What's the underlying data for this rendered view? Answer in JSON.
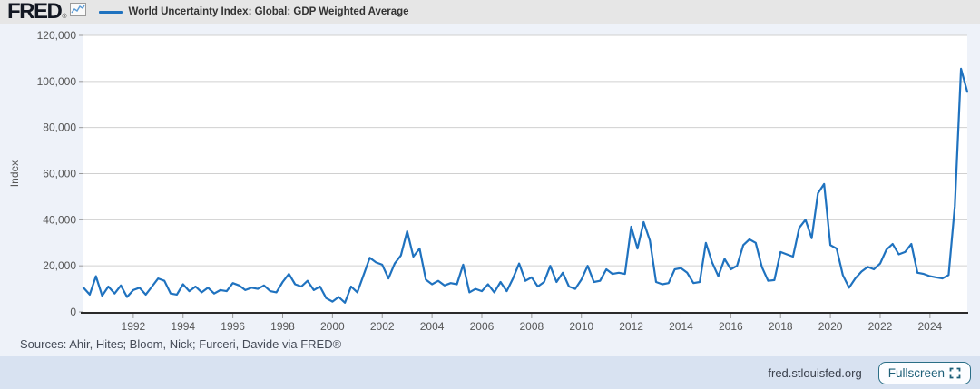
{
  "header": {
    "logo_text": "FRED",
    "logo_reg": "®",
    "legend_label": "World Uncertainty Index: Global: GDP Weighted Average"
  },
  "footer": {
    "sources": "Sources: Ahir, Hites; Bloom, Nick; Furceri, Davide via FRED®",
    "site": "fred.stlouisfed.org",
    "fullscreen_label": "Fullscreen"
  },
  "icons": {
    "logo_icon": "line-chart-icon",
    "fullscreen_icon": "expand-icon"
  },
  "colors": {
    "line": "#1f72bf",
    "header_bg": "#e6e6e6",
    "chart_bg": "#eef2f9",
    "footer_bg": "#d8e2f1",
    "plot_bg": "#ffffff",
    "grid": "#d0d0d0",
    "axis": "#333333",
    "tick_text": "#555555",
    "button_border": "#2a6e86",
    "button_text": "#1d5f78"
  },
  "chart_data": {
    "type": "line",
    "title": "World Uncertainty Index: Global: GDP Weighted Average",
    "xlabel": "",
    "ylabel": "Index",
    "ylim": [
      0,
      120000
    ],
    "ytick_step": 20000,
    "xticks": [
      1992,
      1994,
      1996,
      1998,
      2000,
      2002,
      2004,
      2006,
      2008,
      2010,
      2012,
      2014,
      2016,
      2018,
      2020,
      2022,
      2024
    ],
    "x_domain": [
      1990,
      2025.5
    ],
    "frequency": "quarterly",
    "start_period": "1990Q1",
    "end_period": "2025Q3",
    "grid": true,
    "legend_position": "top-left",
    "series": [
      {
        "name": "World Uncertainty Index: Global: GDP Weighted Average",
        "values": [
          10500,
          7500,
          15500,
          7000,
          11000,
          8000,
          11500,
          6500,
          9500,
          10500,
          7500,
          11000,
          14500,
          13500,
          8000,
          7500,
          12000,
          9000,
          11000,
          8500,
          10500,
          8000,
          9500,
          9000,
          12500,
          11500,
          9500,
          10500,
          10000,
          11500,
          9000,
          8500,
          13000,
          16500,
          12000,
          11000,
          13500,
          9500,
          11000,
          6000,
          4500,
          6500,
          4000,
          11000,
          8500,
          16000,
          23500,
          21500,
          20500,
          14500,
          21000,
          24500,
          35000,
          24000,
          27500,
          14000,
          12000,
          13500,
          11500,
          12500,
          12000,
          20500,
          8500,
          10000,
          9000,
          12000,
          8500,
          13000,
          9000,
          14500,
          21000,
          13500,
          15000,
          11000,
          13000,
          20000,
          13000,
          17000,
          11000,
          10000,
          14000,
          20000,
          13000,
          13500,
          18500,
          16500,
          17000,
          16500,
          37000,
          27500,
          39000,
          31000,
          13000,
          12000,
          12500,
          18500,
          19000,
          17000,
          12500,
          13000,
          30000,
          21500,
          15500,
          23000,
          18500,
          20000,
          29000,
          31500,
          30000,
          19500,
          13500,
          13800,
          26000,
          25000,
          24000,
          36500,
          40000,
          32000,
          51500,
          55500,
          29000,
          27500,
          16000,
          10500,
          14500,
          17500,
          19500,
          18500,
          21000,
          27000,
          29500,
          25000,
          26000,
          29500,
          17000,
          16500,
          15500,
          15000,
          14500,
          16000,
          46000,
          105500,
          95500
        ]
      }
    ]
  }
}
